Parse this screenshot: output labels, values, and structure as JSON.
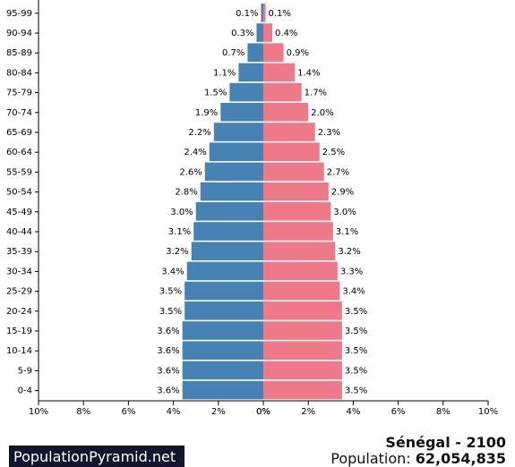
{
  "chart_data": {
    "type": "bar",
    "orientation": "horizontal-population-pyramid",
    "categories": [
      "0-4",
      "5-9",
      "10-14",
      "15-19",
      "20-24",
      "25-29",
      "30-34",
      "35-39",
      "40-44",
      "45-49",
      "50-54",
      "55-59",
      "60-64",
      "65-69",
      "70-74",
      "75-79",
      "80-84",
      "85-89",
      "90-94",
      "95-99"
    ],
    "series": [
      {
        "values": [
          3.6,
          3.6,
          3.6,
          3.6,
          3.5,
          3.5,
          3.4,
          3.2,
          3.1,
          3.0,
          2.8,
          2.6,
          2.4,
          2.2,
          1.9,
          1.5,
          1.1,
          0.7,
          0.3,
          0.1
        ],
        "color": "#4682b4",
        "side": "left"
      },
      {
        "values": [
          3.5,
          3.5,
          3.5,
          3.5,
          3.5,
          3.4,
          3.3,
          3.2,
          3.1,
          3.0,
          2.9,
          2.7,
          2.5,
          2.3,
          2.0,
          1.7,
          1.4,
          0.9,
          0.4,
          0.1
        ],
        "color": "#ee7989",
        "side": "right"
      }
    ],
    "x_ticks_left": [
      "10%",
      "8%",
      "6%",
      "4%",
      "2%",
      "0%"
    ],
    "x_ticks_right": [
      "0%",
      "2%",
      "4%",
      "6%",
      "8%",
      "10%"
    ],
    "xlim": [
      0,
      10
    ],
    "grid": false
  },
  "footer": {
    "brand": "PopulationPyramid.net",
    "title": "Sénégal - 2100",
    "population_label": "Population:",
    "population_value": "62,054,835"
  }
}
